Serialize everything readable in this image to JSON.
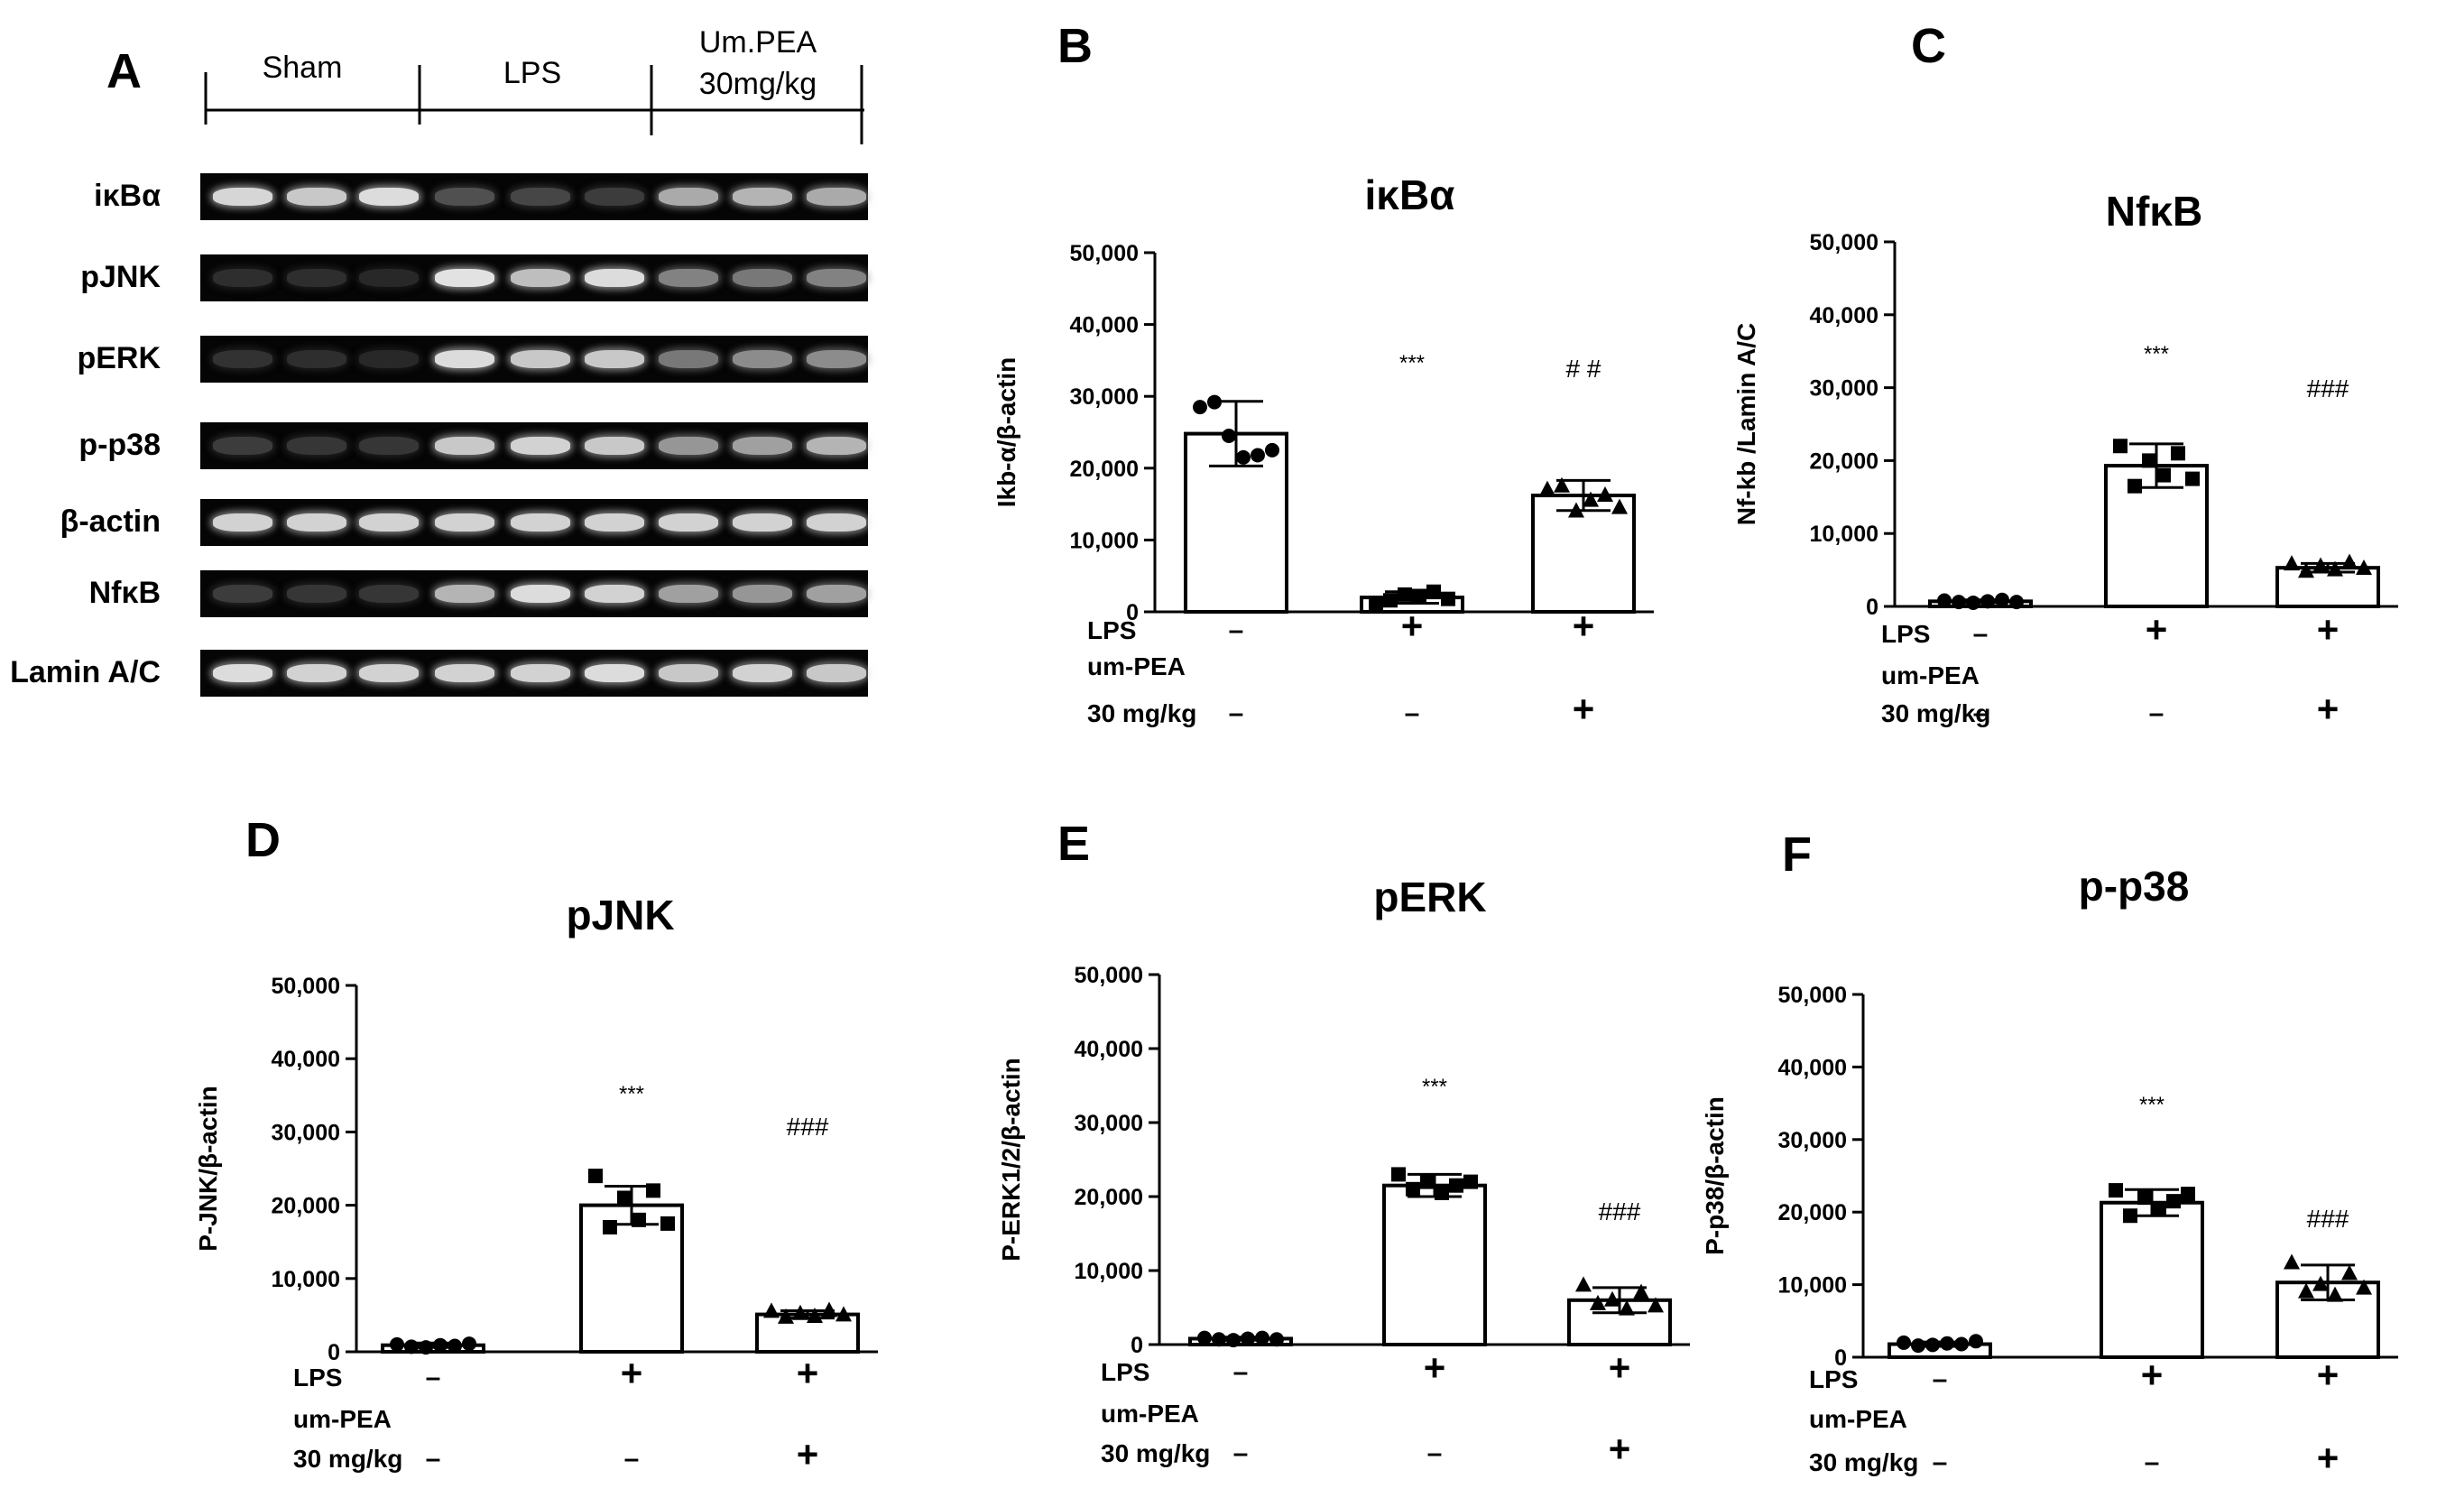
{
  "panel_letters": [
    "A",
    "B",
    "C",
    "D",
    "E",
    "F"
  ],
  "blot": {
    "groups": [
      {
        "label_lines": [
          "Sham"
        ]
      },
      {
        "label_lines": [
          "LPS"
        ]
      },
      {
        "label_lines": [
          "Um.PEA",
          "30mg/kg"
        ]
      }
    ],
    "rows": [
      {
        "label": "iκBα",
        "intensity": [
          0.92,
          0.85,
          0.95,
          0.25,
          0.2,
          0.15,
          0.7,
          0.75,
          0.7
        ]
      },
      {
        "label": "pJNK",
        "intensity": [
          0.08,
          0.08,
          0.05,
          0.98,
          0.8,
          0.95,
          0.5,
          0.45,
          0.5
        ]
      },
      {
        "label": "pERK",
        "intensity": [
          0.1,
          0.08,
          0.05,
          0.95,
          0.85,
          0.85,
          0.45,
          0.55,
          0.55
        ]
      },
      {
        "label": "p-p38",
        "intensity": [
          0.15,
          0.12,
          0.12,
          0.85,
          0.9,
          0.85,
          0.6,
          0.65,
          0.75
        ]
      },
      {
        "label": "β-actin",
        "intensity": [
          0.9,
          0.9,
          0.9,
          0.9,
          0.9,
          0.9,
          0.9,
          0.9,
          0.9
        ]
      },
      {
        "label": "NfκB",
        "intensity": [
          0.15,
          0.12,
          0.12,
          0.75,
          0.95,
          0.9,
          0.65,
          0.6,
          0.65
        ]
      },
      {
        "label": "Lamin A/C",
        "intensity": [
          0.95,
          0.9,
          0.9,
          0.9,
          0.9,
          0.95,
          0.85,
          0.9,
          0.85
        ]
      }
    ]
  },
  "chart_data": [
    {
      "panel": "B",
      "type": "bar",
      "title": "iκBα",
      "ylabel": "Ikb-α/β-actin",
      "ylim": [
        0,
        50000
      ],
      "yticks": [
        "0",
        "10,000",
        "20,000",
        "30,000",
        "40,000",
        "50,000"
      ],
      "values": [
        24800,
        2000,
        16200
      ],
      "sd": [
        4500,
        800,
        2100
      ],
      "points": [
        [
          28500,
          29200,
          24500,
          21500,
          21800,
          22500
        ],
        [
          1200,
          1600,
          2400,
          2200,
          2800,
          1800
        ],
        [
          17000,
          17500,
          14000,
          15500,
          16200,
          14500
        ]
      ],
      "markers": [
        "circle",
        "square",
        "triangle"
      ],
      "annotations": [
        "",
        "***",
        "# #"
      ],
      "rows": [
        {
          "label": "LPS",
          "values": [
            "–",
            "+",
            "+"
          ]
        },
        {
          "label": "um-PEA",
          "values": [
            "",
            "",
            ""
          ]
        },
        {
          "label": "30 mg/kg",
          "values": [
            "–",
            "–",
            "+"
          ]
        }
      ]
    },
    {
      "panel": "C",
      "type": "bar",
      "title": "NfκB",
      "ylabel": "Nf-kb /Lamin A/C",
      "ylim": [
        0,
        50000
      ],
      "yticks": [
        "0",
        "10,000",
        "20,000",
        "30,000",
        "40,000",
        "50,000"
      ],
      "values": [
        700,
        19300,
        5300
      ],
      "sd": [
        200,
        3000,
        600
      ],
      "points": [
        [
          800,
          600,
          500,
          700,
          900,
          600
        ],
        [
          22000,
          16500,
          20000,
          18000,
          21000,
          17500
        ],
        [
          5800,
          4800,
          5500,
          5000,
          6000,
          5200
        ]
      ],
      "markers": [
        "circle",
        "square",
        "triangle"
      ],
      "annotations": [
        "",
        "***",
        "###"
      ],
      "rows": [
        {
          "label": "LPS",
          "values": [
            "–",
            "+",
            "+"
          ]
        },
        {
          "label": "um-PEA",
          "values": [
            "",
            "",
            ""
          ]
        },
        {
          "label": "30 mg/kg",
          "values": [
            "–",
            "–",
            "+"
          ]
        }
      ]
    },
    {
      "panel": "D",
      "type": "bar",
      "title": "pJNK",
      "ylabel": "P-JNK/β-actin",
      "ylim": [
        0,
        50000
      ],
      "yticks": [
        "0",
        "10,000",
        "20,000",
        "30,000",
        "40,000",
        "50,000"
      ],
      "values": [
        900,
        20000,
        5100
      ],
      "sd": [
        300,
        2600,
        500
      ],
      "points": [
        [
          1000,
          700,
          600,
          900,
          800,
          1100
        ],
        [
          24000,
          17000,
          21000,
          18000,
          22000,
          17500
        ],
        [
          5500,
          4700,
          5200,
          4800,
          5600,
          5000
        ]
      ],
      "markers": [
        "circle",
        "square",
        "triangle"
      ],
      "annotations": [
        "",
        "***",
        "###"
      ],
      "rows": [
        {
          "label": "LPS",
          "values": [
            "–",
            "+",
            "+"
          ]
        },
        {
          "label": "um-PEA",
          "values": [
            "",
            "",
            ""
          ]
        },
        {
          "label": "30 mg/kg",
          "values": [
            "–",
            "–",
            "+"
          ]
        }
      ]
    },
    {
      "panel": "E",
      "type": "bar",
      "title": "pERK",
      "ylabel": "P-ERK1/2/β-actin",
      "ylim": [
        0,
        50000
      ],
      "yticks": [
        "0",
        "10,000",
        "20,000",
        "30,000",
        "40,000",
        "50,000"
      ],
      "values": [
        800,
        21500,
        6000
      ],
      "sd": [
        200,
        1500,
        1700
      ],
      "points": [
        [
          900,
          700,
          600,
          800,
          900,
          700
        ],
        [
          23000,
          21000,
          22000,
          20500,
          21500,
          22000
        ],
        [
          8000,
          5500,
          6000,
          4800,
          7000,
          5200
        ]
      ],
      "markers": [
        "circle",
        "square",
        "triangle"
      ],
      "annotations": [
        "",
        "***",
        "###"
      ],
      "rows": [
        {
          "label": "LPS",
          "values": [
            "–",
            "+",
            "+"
          ]
        },
        {
          "label": "um-PEA",
          "values": [
            "",
            "",
            ""
          ]
        },
        {
          "label": "30 mg/kg",
          "values": [
            "–",
            "–",
            "+"
          ]
        }
      ]
    },
    {
      "panel": "F",
      "type": "bar",
      "title": "p-p38",
      "ylabel": "P-p38/β-actin",
      "ylim": [
        0,
        50000
      ],
      "yticks": [
        "0",
        "10,000",
        "20,000",
        "30,000",
        "40,000",
        "50,000"
      ],
      "values": [
        1800,
        21300,
        10300
      ],
      "sd": [
        300,
        1800,
        2400
      ],
      "points": [
        [
          2000,
          1600,
          1700,
          1900,
          1800,
          2200
        ],
        [
          23000,
          19500,
          22000,
          20500,
          21500,
          22500
        ],
        [
          13000,
          9000,
          10000,
          8500,
          11500,
          9500
        ]
      ],
      "markers": [
        "circle",
        "square",
        "triangle"
      ],
      "annotations": [
        "",
        "***",
        "###"
      ],
      "rows": [
        {
          "label": "LPS",
          "values": [
            "–",
            "+",
            "+"
          ]
        },
        {
          "label": "um-PEA",
          "values": [
            "",
            "",
            ""
          ]
        },
        {
          "label": "30 mg/kg",
          "values": [
            "–",
            "–",
            "+"
          ]
        }
      ]
    }
  ]
}
